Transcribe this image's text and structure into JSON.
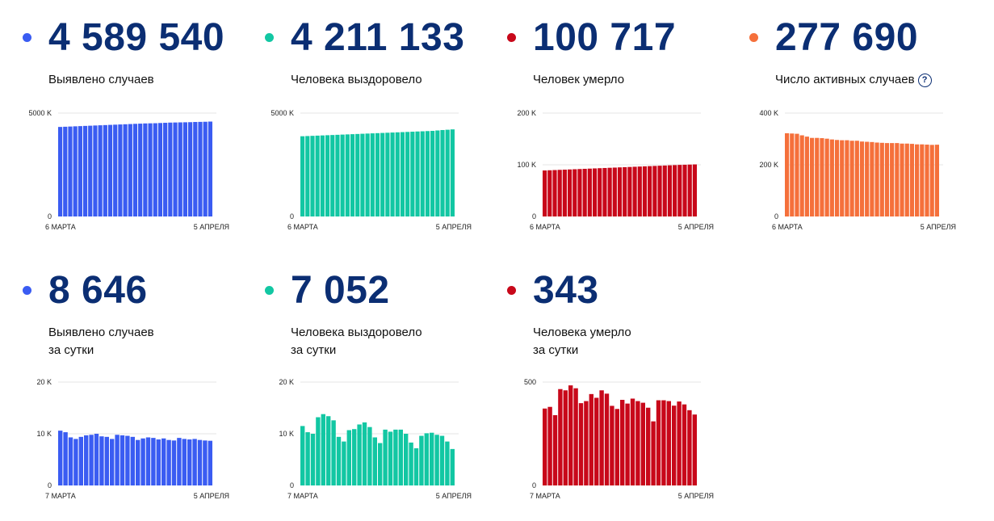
{
  "cards": [
    {
      "id": "cases-total",
      "value": "4 589 540",
      "label_line1": "Выявлено случаев",
      "label_line2": "",
      "color": "#3a5cf2",
      "chart_data": {
        "type": "bar",
        "x_start_label": "6 МАРТА",
        "x_end_label": "5 АПРЕЛЯ",
        "yticks": [
          "5000 K",
          "0"
        ],
        "ylim": [
          0,
          5000000
        ],
        "values": [
          4330000,
          4340000,
          4350000,
          4360000,
          4370000,
          4380000,
          4390000,
          4400000,
          4410000,
          4420000,
          4430000,
          4440000,
          4450000,
          4460000,
          4470000,
          4480000,
          4490000,
          4500000,
          4505000,
          4510000,
          4520000,
          4530000,
          4540000,
          4545000,
          4550000,
          4555000,
          4560000,
          4570000,
          4575000,
          4580000,
          4589540
        ]
      }
    },
    {
      "id": "recovered-total",
      "value": "4 211 133",
      "label_line1": "Человека выздоровело",
      "label_line2": "",
      "color": "#12c7a3",
      "chart_data": {
        "type": "bar",
        "x_start_label": "6 МАРТА",
        "x_end_label": "5 АПРЕЛЯ",
        "yticks": [
          "5000 K",
          "0"
        ],
        "ylim": [
          0,
          5000000
        ],
        "values": [
          3880000,
          3890000,
          3900000,
          3910000,
          3920000,
          3930000,
          3940000,
          3950000,
          3960000,
          3970000,
          3980000,
          3990000,
          4000000,
          4010000,
          4020000,
          4030000,
          4040000,
          4050000,
          4060000,
          4070000,
          4080000,
          4090000,
          4100000,
          4110000,
          4120000,
          4130000,
          4140000,
          4160000,
          4180000,
          4195000,
          4211133
        ]
      }
    },
    {
      "id": "deaths-total",
      "value": "100 717",
      "label_line1": "Человек умерло",
      "label_line2": "",
      "color": "#c8081a",
      "chart_data": {
        "type": "bar",
        "x_start_label": "6 МАРТА",
        "x_end_label": "5 АПРЕЛЯ",
        "yticks": [
          "200 K",
          "100 K",
          "0"
        ],
        "ylim": [
          0,
          200000
        ],
        "values": [
          89000,
          89400,
          89800,
          90200,
          90600,
          91000,
          91400,
          91800,
          92200,
          92600,
          93000,
          93400,
          93800,
          94200,
          94600,
          95000,
          95400,
          95800,
          96200,
          96600,
          97000,
          97400,
          97800,
          98200,
          98600,
          99000,
          99400,
          99800,
          100100,
          100400,
          100717
        ]
      }
    },
    {
      "id": "active-total",
      "value": "277 690",
      "label_line1": "Число активных случаев",
      "label_line2": "",
      "help": "?",
      "color": "#f5703b",
      "chart_data": {
        "type": "bar",
        "x_start_label": "6 МАРТА",
        "x_end_label": "5 АПРЕЛЯ",
        "yticks": [
          "400 K",
          "200 K",
          "0"
        ],
        "ylim": [
          0,
          400000
        ],
        "values": [
          322000,
          321000,
          320000,
          314000,
          309000,
          304000,
          304000,
          303000,
          301000,
          298000,
          296000,
          295000,
          295000,
          293000,
          293000,
          290000,
          289000,
          288000,
          286000,
          285000,
          284000,
          284000,
          284000,
          282000,
          282000,
          281000,
          279000,
          279000,
          278000,
          277000,
          277690
        ]
      }
    },
    {
      "id": "cases-daily",
      "value": "8 646",
      "label_line1": "Выявлено случаев",
      "label_line2": "за сутки",
      "color": "#3a5cf2",
      "chart_data": {
        "type": "bar",
        "x_start_label": "7 МАРТА",
        "x_end_label": "5 АПРЕЛЯ",
        "yticks": [
          "20 K",
          "10 K",
          "0"
        ],
        "ylim": [
          0,
          20000
        ],
        "values": [
          10600,
          10300,
          9300,
          9000,
          9400,
          9700,
          9800,
          10000,
          9500,
          9400,
          9000,
          9800,
          9700,
          9600,
          9400,
          8800,
          9100,
          9300,
          9200,
          8900,
          9100,
          8800,
          8700,
          9200,
          9000,
          8900,
          9000,
          8800,
          8700,
          8646
        ]
      }
    },
    {
      "id": "recovered-daily",
      "value": "7 052",
      "label_line1": "Человека выздоровело",
      "label_line2": "за сутки",
      "color": "#12c7a3",
      "chart_data": {
        "type": "bar",
        "x_start_label": "7 МАРТА",
        "x_end_label": "5 АПРЕЛЯ",
        "yticks": [
          "20 K",
          "10 K",
          "0"
        ],
        "ylim": [
          0,
          20000
        ],
        "values": [
          11500,
          10300,
          10000,
          13200,
          13800,
          13400,
          12600,
          9400,
          8500,
          10700,
          10900,
          11800,
          12200,
          11300,
          9300,
          8200,
          10800,
          10400,
          10800,
          10800,
          10000,
          8300,
          7200,
          9600,
          10100,
          10200,
          9800,
          9600,
          8500,
          7052
        ]
      }
    },
    {
      "id": "deaths-daily",
      "value": "343",
      "label_line1": "Человека умерло",
      "label_line2": "за сутки",
      "color": "#c8081a",
      "chart_data": {
        "type": "bar",
        "x_start_label": "7 МАРТА",
        "x_end_label": "5 АПРЕЛЯ",
        "yticks": [
          "500",
          "0"
        ],
        "ylim": [
          0,
          500
        ],
        "values": [
          372,
          380,
          340,
          466,
          460,
          484,
          470,
          398,
          408,
          442,
          424,
          460,
          444,
          385,
          370,
          414,
          396,
          420,
          408,
          400,
          376,
          310,
          412,
          412,
          408,
          386,
          406,
          392,
          364,
          343
        ]
      }
    }
  ]
}
